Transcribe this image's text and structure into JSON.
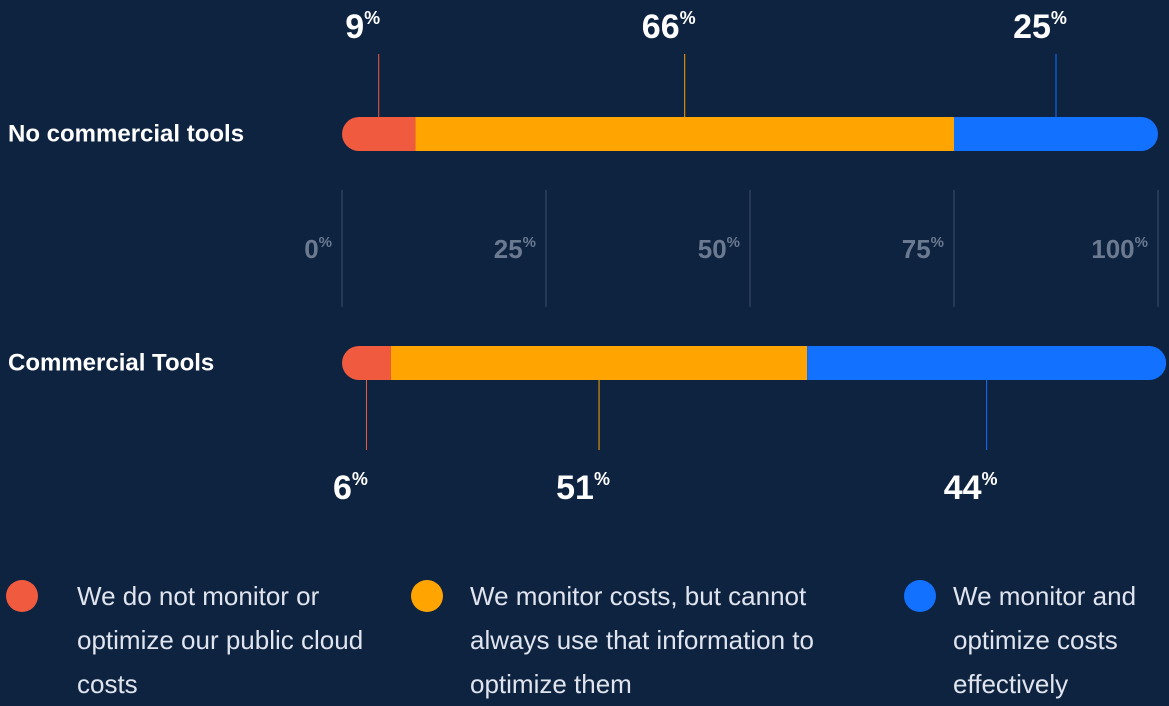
{
  "chart_data": {
    "type": "stacked-bar-horizontal",
    "categories": [
      "No commercial tools",
      "Commercial Tools"
    ],
    "series": [
      {
        "name": "We do not monitor or optimize our public cloud costs",
        "color": "#f05a3f",
        "values": [
          9,
          6
        ],
        "value_labels": [
          "9%",
          "6%"
        ]
      },
      {
        "name": "We monitor costs, but cannot always use that information to optimize them",
        "color": "#ffa400",
        "values": [
          66,
          51
        ],
        "value_labels": [
          "66%",
          "51%"
        ]
      },
      {
        "name": "We monitor and optimize costs effectively",
        "color": "#1271ff",
        "values": [
          25,
          44
        ],
        "value_labels": [
          "25%",
          "44%"
        ]
      }
    ],
    "xlim": [
      0,
      100
    ],
    "xticks": [
      {
        "value": 0,
        "label": "0%"
      },
      {
        "value": 25,
        "label": "25%"
      },
      {
        "value": 50,
        "label": "50%"
      },
      {
        "value": 75,
        "label": "75%"
      },
      {
        "value": 100,
        "label": "100%"
      }
    ],
    "grid": true
  }
}
